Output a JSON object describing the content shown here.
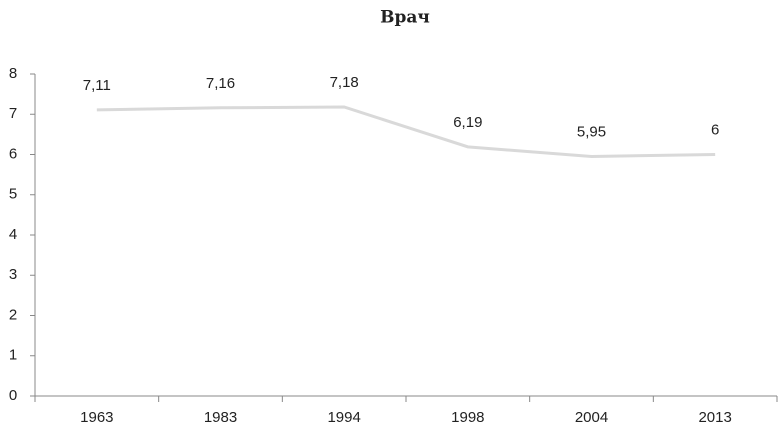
{
  "chart_data": {
    "type": "line",
    "title": "Врач",
    "categories": [
      "1963",
      "1983",
      "1994",
      "1998",
      "2004",
      "2013"
    ],
    "series": [
      {
        "name": "Врач",
        "color": "#d9d9d9",
        "values": [
          7.11,
          7.16,
          7.18,
          6.19,
          5.95,
          6
        ],
        "value_labels": [
          "7,11",
          "7,16",
          "7,18",
          "6,19",
          "5,95",
          "6"
        ]
      }
    ],
    "ylim": [
      0,
      8
    ],
    "yticks": [
      0,
      1,
      2,
      3,
      4,
      5,
      6,
      7,
      8
    ],
    "grid": false,
    "legend": false
  }
}
